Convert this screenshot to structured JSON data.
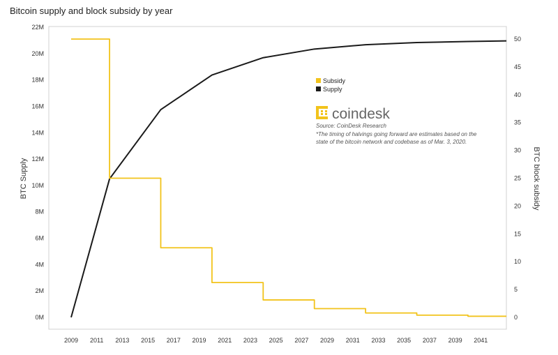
{
  "chart_data": {
    "type": "line",
    "title": "Bitcoin supply and block subsidy by year",
    "ylabel_left": "BTC Supply",
    "ylabel_right": "BTC block subsidy",
    "y_left_ticks": [
      "0M",
      "2M",
      "4M",
      "6M",
      "8M",
      "10M",
      "12M",
      "14M",
      "16M",
      "18M",
      "20M",
      "22M"
    ],
    "y_left_lim": [
      0,
      22000000
    ],
    "y_right_ticks": [
      "0",
      "5",
      "10",
      "15",
      "20",
      "25",
      "30",
      "35",
      "40",
      "45",
      "50"
    ],
    "y_right_lim": [
      0,
      52
    ],
    "x_ticks": [
      "2009",
      "2011",
      "2013",
      "2015",
      "2017",
      "2019",
      "2021",
      "2023",
      "2025",
      "2027",
      "2029",
      "2031",
      "2033",
      "2035",
      "2037",
      "2039",
      "2041"
    ],
    "x_lim": [
      2009,
      2043
    ],
    "series": [
      {
        "name": "Supply",
        "axis": "left",
        "color": "#1a1a1a",
        "step": false,
        "x": [
          2009,
          2012,
          2016,
          2020,
          2024,
          2028,
          2032,
          2036,
          2040,
          2043
        ],
        "y": [
          0,
          10500000,
          15750000,
          18375000,
          19687500,
          20343750,
          20671875,
          20835938,
          20917969,
          20960000
        ]
      },
      {
        "name": "Subsidy",
        "axis": "right",
        "color": "#f2c31b",
        "step": true,
        "x": [
          2009,
          2012,
          2016,
          2020,
          2024,
          2028,
          2032,
          2036,
          2040,
          2043
        ],
        "y": [
          50,
          25,
          12.5,
          6.25,
          3.125,
          1.5625,
          0.78125,
          0.390625,
          0.195,
          0.195
        ]
      }
    ],
    "legend": [
      {
        "label": "Subsidy",
        "color": "#f2c31b"
      },
      {
        "label": "Supply",
        "color": "#1a1a1a"
      }
    ],
    "legend_position": "upper-center",
    "brand": "coindesk",
    "source": "Source: CoinDesk Research",
    "note_lines": [
      "*The timing of halvings going forward are estimates based on the",
      "state of the bitcoin network and codebase as of Mar. 3, 2020."
    ],
    "grid": false
  }
}
